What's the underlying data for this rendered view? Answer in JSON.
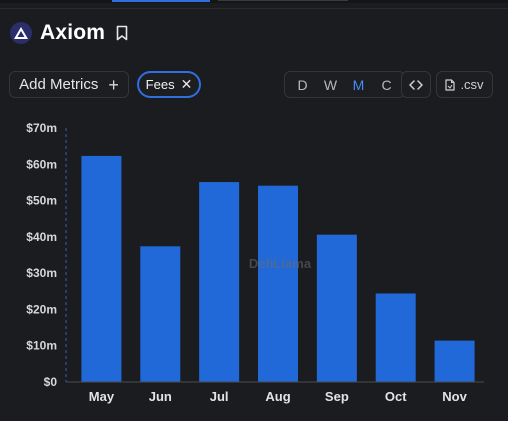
{
  "app": {
    "title": "Axiom"
  },
  "toolbar": {
    "add_metrics_label": "Add Metrics",
    "active_filter": "Fees",
    "periods": [
      "D",
      "W",
      "M",
      "C"
    ],
    "active_period": "M",
    "code_label": "<>",
    "csv_label": ".csv"
  },
  "colors": {
    "bar": "#2169d8",
    "accent": "#2f6fe0",
    "background": "#1b1c1f"
  },
  "watermark": "DefiLlama",
  "chart_data": {
    "type": "bar",
    "categories": [
      "May",
      "Jun",
      "Jul",
      "Aug",
      "Sep",
      "Oct",
      "Nov"
    ],
    "values": [
      62.3,
      37.4,
      55.1,
      54.1,
      40.6,
      24.4,
      11.4
    ],
    "unit": "m",
    "y_ticks": [
      "$0",
      "$10m",
      "$20m",
      "$30m",
      "$40m",
      "$50m",
      "$60m",
      "$70m"
    ],
    "ylim": [
      0,
      70
    ],
    "grid": false
  }
}
